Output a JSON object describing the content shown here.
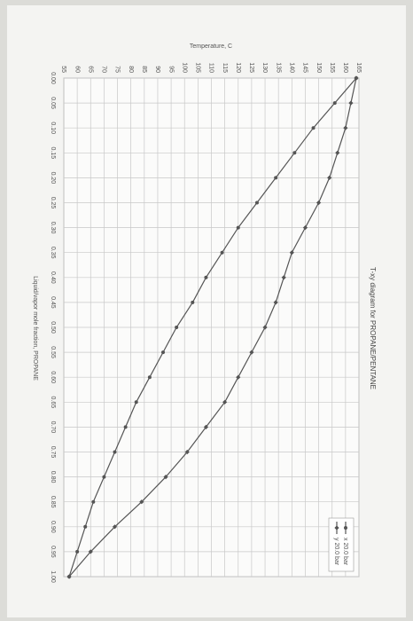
{
  "chart_data": {
    "type": "line",
    "title": "T-xy diagram for PROPANE/PENTANE",
    "xlabel": "Liquid/vapor mole fraction, PROPANE",
    "ylabel": "Temperature, C",
    "x": [
      0,
      0.05,
      0.1,
      0.15,
      0.2,
      0.25,
      0.3,
      0.35,
      0.4,
      0.45,
      0.5,
      0.55,
      0.6,
      0.65,
      0.7,
      0.75,
      0.8,
      0.85,
      0.9,
      0.95,
      1
    ],
    "series": [
      {
        "name": "x 20.0 bar",
        "color": "#555555",
        "marker": "circle",
        "values": [
          164,
          156,
          148,
          141,
          134,
          127,
          120,
          114,
          108,
          103,
          97,
          92,
          87,
          82,
          78,
          74,
          70,
          66,
          63,
          60,
          57
        ]
      },
      {
        "name": "y 20.0 bar",
        "color": "#555555",
        "marker": "diamond",
        "values": [
          164,
          162,
          160,
          157,
          154,
          150,
          145,
          140,
          137,
          134,
          130,
          125,
          120,
          115,
          108,
          101,
          93,
          84,
          74,
          65,
          57
        ]
      }
    ],
    "xlim": [
      0,
      1
    ],
    "xticks": [
      {
        "value": 0,
        "label": "0.00"
      },
      {
        "value": 0.05,
        "label": "0.05"
      },
      {
        "value": 0.1,
        "label": "0.10"
      },
      {
        "value": 0.15,
        "label": "0.15"
      },
      {
        "value": 0.2,
        "label": "0.20"
      },
      {
        "value": 0.25,
        "label": "0.25"
      },
      {
        "value": 0.3,
        "label": "0.30"
      },
      {
        "value": 0.35,
        "label": "0.35"
      },
      {
        "value": 0.4,
        "label": "0.40"
      },
      {
        "value": 0.45,
        "label": "0.45"
      },
      {
        "value": 0.5,
        "label": "0.50"
      },
      {
        "value": 0.55,
        "label": "0.55"
      },
      {
        "value": 0.6,
        "label": "0.60"
      },
      {
        "value": 0.65,
        "label": "0.65"
      },
      {
        "value": 0.7,
        "label": "0.70"
      },
      {
        "value": 0.75,
        "label": "0.75"
      },
      {
        "value": 0.8,
        "label": "0.80"
      },
      {
        "value": 0.85,
        "label": "0.85"
      },
      {
        "value": 0.9,
        "label": "0.90"
      },
      {
        "value": 0.95,
        "label": "0.95"
      },
      {
        "value": 1,
        "label": "1.00"
      }
    ],
    "ylim": [
      55,
      165
    ],
    "yticks": [
      55,
      60,
      65,
      70,
      75,
      80,
      85,
      90,
      95,
      100,
      105,
      110,
      115,
      120,
      125,
      130,
      135,
      140,
      145,
      150,
      155,
      160,
      165
    ],
    "grid": true,
    "legend": "top right"
  }
}
